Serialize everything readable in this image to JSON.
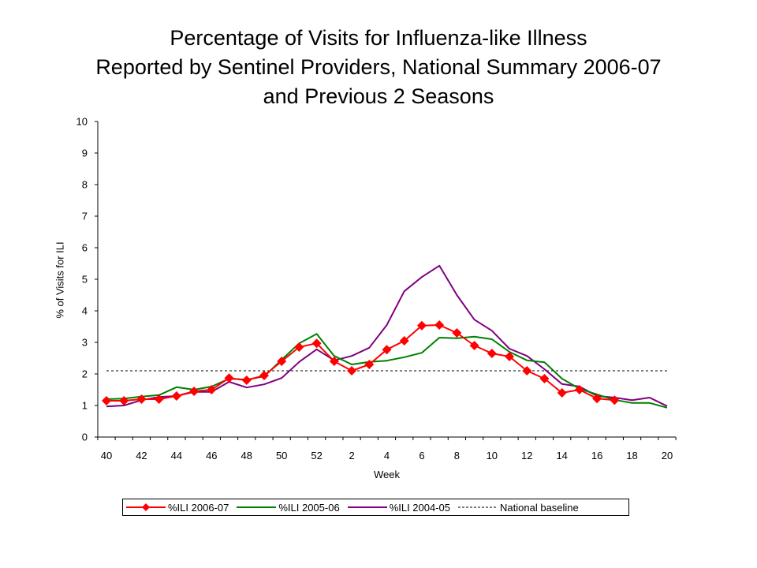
{
  "chart_data": {
    "type": "line",
    "title": "Percentage of Visits for Influenza-like Illness Reported by Sentinel Providers, National Summary 2006-07 and Previous 2 Seasons",
    "title_lines": [
      "Percentage of Visits for Influenza-like Illness",
      "Reported by Sentinel Providers, National Summary 2006-07",
      "and Previous 2 Seasons"
    ],
    "xlabel": "Week",
    "ylabel": "% of Visits for ILI",
    "ylim": [
      0,
      10
    ],
    "yticks": [
      0,
      1,
      2,
      3,
      4,
      5,
      6,
      7,
      8,
      9,
      10
    ],
    "x": [
      40,
      41,
      42,
      43,
      44,
      45,
      46,
      47,
      48,
      49,
      50,
      51,
      52,
      1,
      2,
      3,
      4,
      5,
      6,
      7,
      8,
      9,
      10,
      11,
      12,
      13,
      14,
      15,
      16,
      17,
      18,
      19,
      20
    ],
    "xtick_labels": [
      "40",
      "42",
      "44",
      "46",
      "48",
      "50",
      "52",
      "2",
      "4",
      "6",
      "8",
      "10",
      "12",
      "14",
      "16",
      "18",
      "20"
    ],
    "grid": false,
    "legend_position": "bottom",
    "series": [
      {
        "name": "%ILI 2006-07",
        "color": "#ff0000",
        "marker": "diamond",
        "values": [
          1.15,
          1.15,
          1.2,
          1.2,
          1.3,
          1.45,
          1.5,
          1.87,
          1.8,
          1.95,
          2.4,
          2.85,
          2.97,
          2.4,
          2.1,
          2.3,
          2.77,
          3.05,
          3.53,
          3.55,
          3.3,
          2.9,
          2.65,
          2.55,
          2.1,
          1.85,
          1.4,
          1.5,
          1.22,
          1.17,
          null,
          null,
          null
        ]
      },
      {
        "name": "%ILI 2005-06",
        "color": "#008000",
        "marker": "none",
        "values": [
          1.2,
          1.22,
          1.28,
          1.33,
          1.58,
          1.5,
          1.6,
          1.85,
          1.82,
          1.92,
          2.45,
          2.97,
          3.27,
          2.57,
          2.3,
          2.38,
          2.42,
          2.53,
          2.67,
          3.15,
          3.13,
          3.18,
          3.1,
          2.7,
          2.43,
          2.37,
          1.85,
          1.53,
          1.35,
          1.18,
          1.08,
          1.08,
          0.93
        ]
      },
      {
        "name": "%ILI 2004-05",
        "color": "#800080",
        "marker": "none",
        "values": [
          0.97,
          1.0,
          1.17,
          1.27,
          1.3,
          1.43,
          1.43,
          1.75,
          1.57,
          1.67,
          1.87,
          2.38,
          2.78,
          2.43,
          2.57,
          2.83,
          3.55,
          4.62,
          5.07,
          5.43,
          4.5,
          3.72,
          3.37,
          2.8,
          2.57,
          2.15,
          1.68,
          1.6,
          1.3,
          1.25,
          1.17,
          1.25,
          0.98
        ]
      }
    ],
    "reference_lines": [
      {
        "name": "National baseline",
        "value": 2.1,
        "style": "dashed",
        "color": "#000000"
      }
    ]
  }
}
